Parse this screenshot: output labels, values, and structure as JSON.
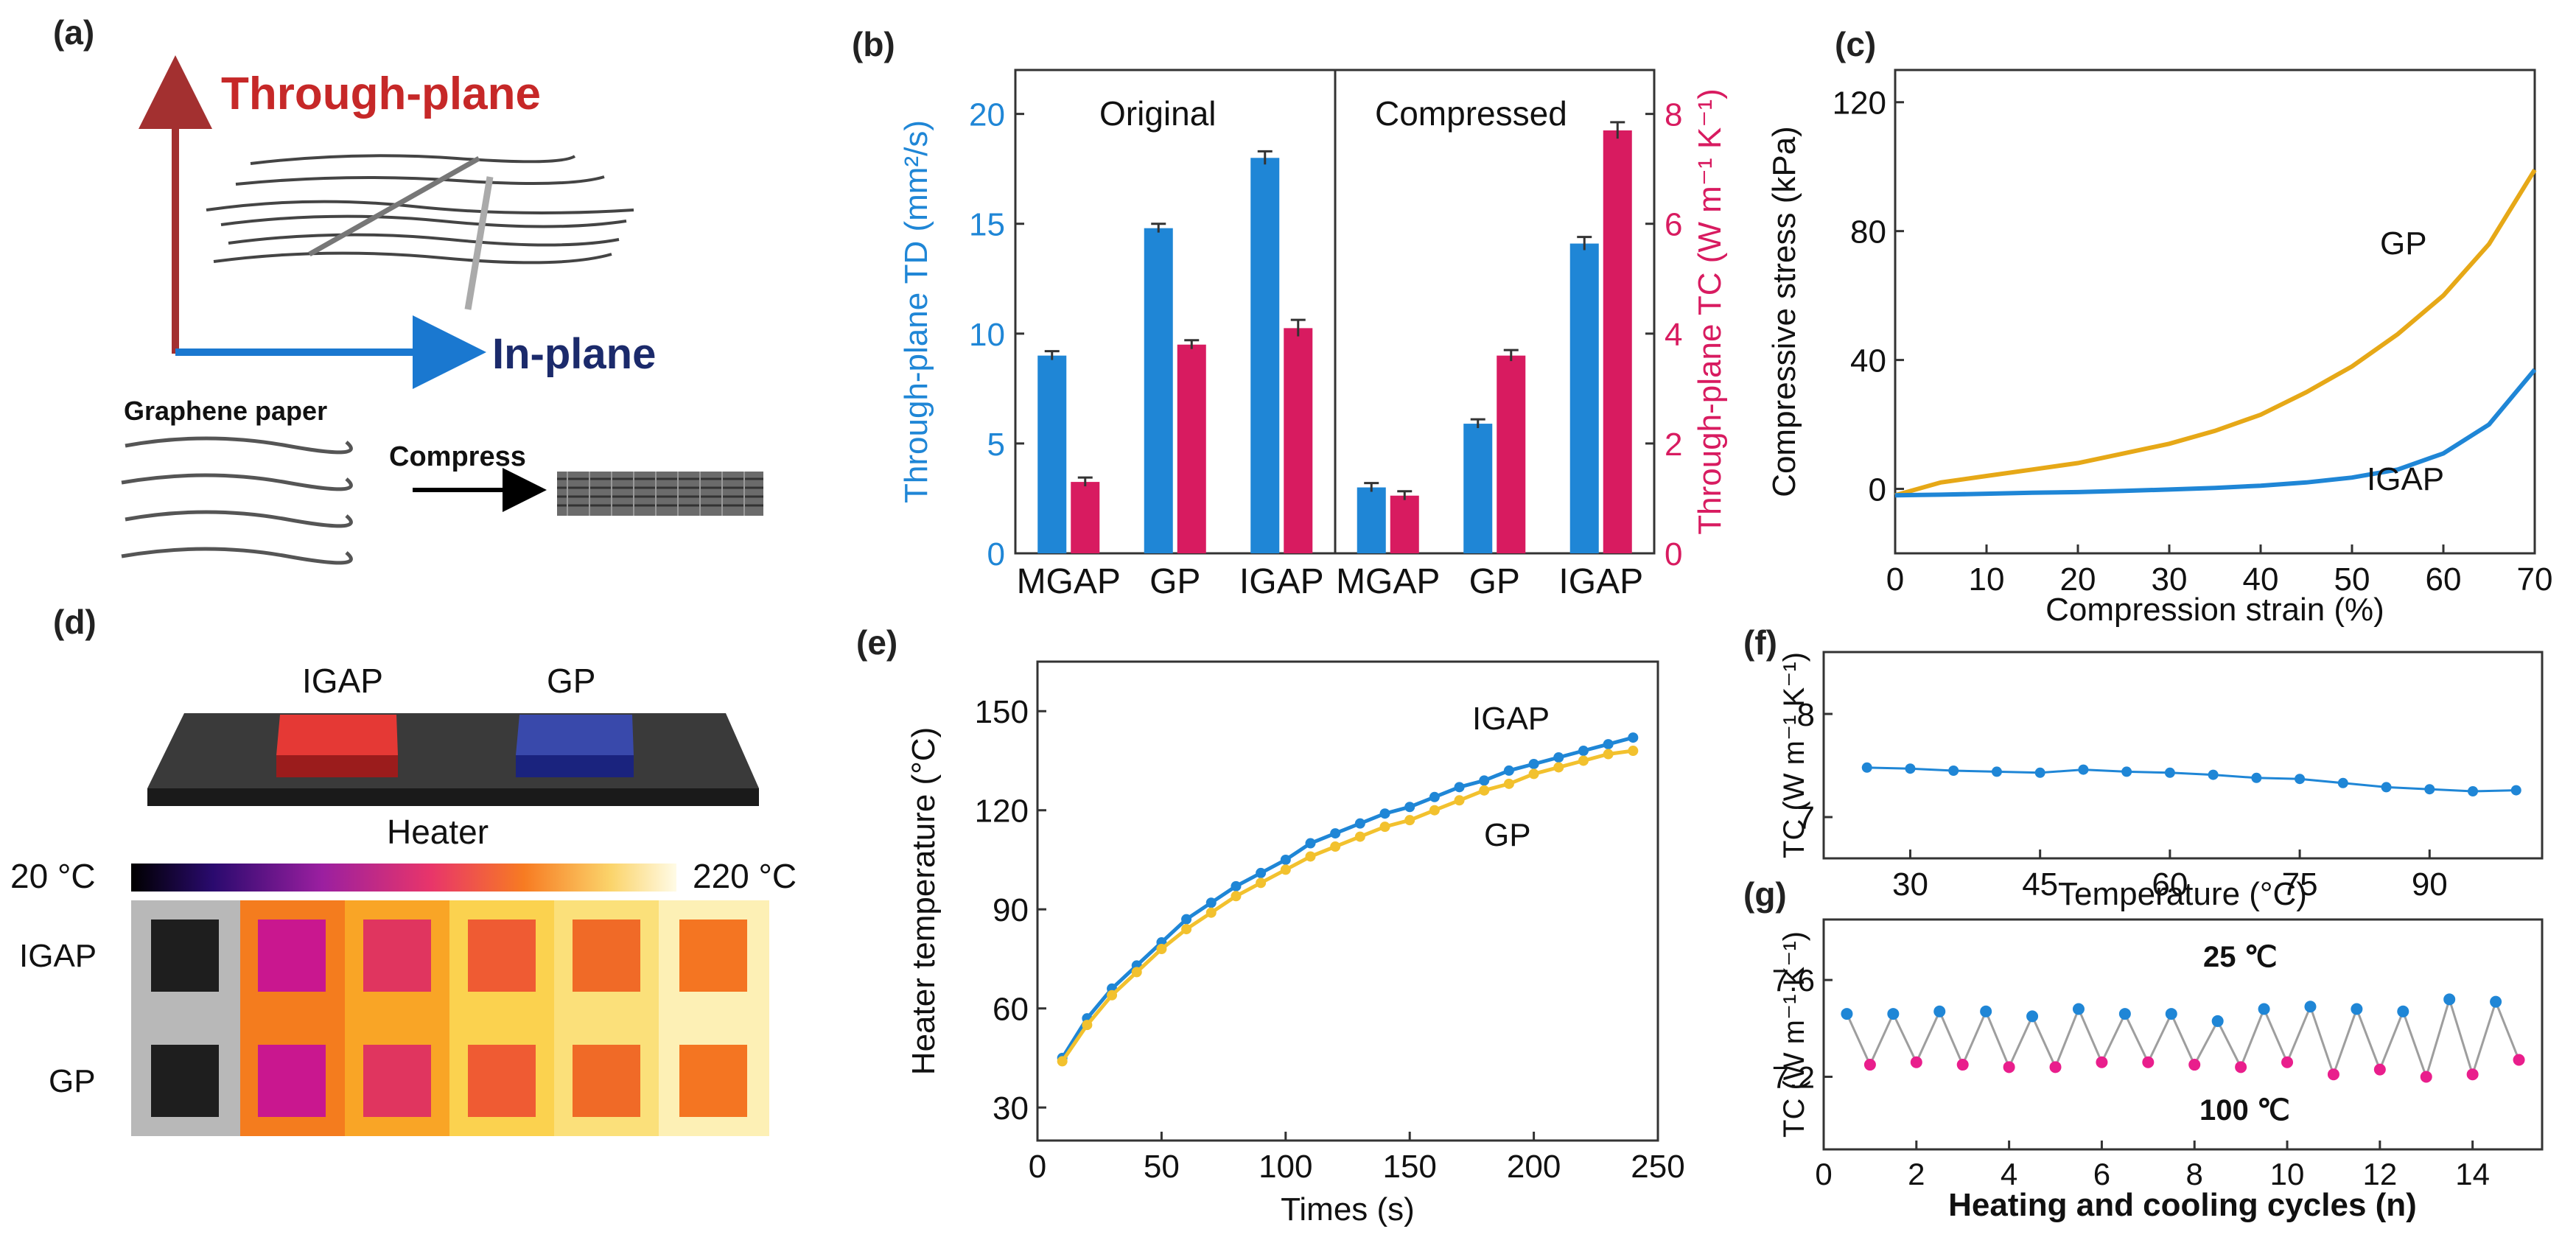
{
  "panels": {
    "a": {
      "label": "(a)",
      "through_plane": "Through-plane",
      "in_plane": "In-plane",
      "graphene_paper": "Graphene paper",
      "compress": "Compress"
    },
    "d": {
      "label": "(d)",
      "igap": "IGAP",
      "gp": "GP",
      "heater": "Heater",
      "scale_min": "20 °C",
      "scale_max": "220 °C",
      "row_igap": "IGAP",
      "row_gp": "GP"
    }
  },
  "colors": {
    "blue": "#1f86d6",
    "magenta": "#d81b60",
    "orange": "#e6a817",
    "gold": "#f2c12e",
    "gray_line": "#9e9e9e"
  },
  "chart_data": [
    {
      "id": "b",
      "panel_label": "(b)",
      "type": "bar",
      "categories": [
        "MGAP",
        "GP",
        "IGAP",
        "MGAP",
        "GP",
        "IGAP"
      ],
      "groups": [
        "Original",
        "Compressed"
      ],
      "series": [
        {
          "name": "Through-plane TD",
          "axis": "left",
          "values": [
            9.0,
            14.8,
            18.0,
            3.0,
            5.9,
            14.1
          ],
          "errors": [
            0.2,
            0.2,
            0.3,
            0.2,
            0.2,
            0.3
          ]
        },
        {
          "name": "Through-plane TC",
          "axis": "right",
          "values": [
            1.3,
            3.8,
            4.1,
            1.05,
            3.6,
            7.7
          ],
          "errors": [
            0.08,
            0.08,
            0.15,
            0.08,
            0.1,
            0.15
          ]
        }
      ],
      "ylabel_left": "Through-plane TD (mm²/s)",
      "ylabel_right": "Through-plane TC (W m⁻¹ K⁻¹)",
      "ylim_left": [
        0,
        22
      ],
      "ylim_right": [
        0,
        8.8
      ],
      "yticks_left": [
        "0",
        "5",
        "10",
        "15",
        "20"
      ],
      "yticks_right": [
        "0",
        "2",
        "4",
        "6",
        "8"
      ]
    },
    {
      "id": "c",
      "panel_label": "(c)",
      "type": "line",
      "xlabel": "Compression strain (%)",
      "ylabel": "Compressive stress (kPa)",
      "xlim": [
        0,
        70
      ],
      "ylim": [
        -20,
        130
      ],
      "xticks": [
        "0",
        "10",
        "20",
        "30",
        "40",
        "50",
        "60",
        "70"
      ],
      "yticks": [
        "0",
        "40",
        "80",
        "120"
      ],
      "series": [
        {
          "name": "GP",
          "x": [
            0,
            5,
            10,
            15,
            20,
            25,
            30,
            35,
            40,
            45,
            50,
            55,
            60,
            65,
            70
          ],
          "y": [
            -2,
            2,
            4,
            6,
            8,
            11,
            14,
            18,
            23,
            30,
            38,
            48,
            60,
            76,
            99
          ]
        },
        {
          "name": "IGAP",
          "x": [
            0,
            5,
            10,
            15,
            20,
            25,
            30,
            35,
            40,
            45,
            50,
            55,
            60,
            65,
            70
          ],
          "y": [
            -2,
            -1.8,
            -1.5,
            -1.2,
            -1,
            -0.6,
            -0.2,
            0.3,
            1,
            2,
            3.5,
            6,
            11,
            20,
            37
          ]
        }
      ]
    },
    {
      "id": "e",
      "panel_label": "(e)",
      "type": "line",
      "xlabel": "Times (s)",
      "ylabel": "Heater temperature (°C)",
      "xlim": [
        0,
        250
      ],
      "ylim": [
        20,
        165
      ],
      "xticks": [
        "0",
        "50",
        "100",
        "150",
        "200",
        "250"
      ],
      "yticks": [
        "30",
        "60",
        "90",
        "120",
        "150"
      ],
      "series": [
        {
          "name": "IGAP",
          "x": [
            10,
            20,
            30,
            40,
            50,
            60,
            70,
            80,
            90,
            100,
            110,
            120,
            130,
            140,
            150,
            160,
            170,
            180,
            190,
            200,
            210,
            220,
            230,
            240
          ],
          "y": [
            45,
            57,
            66,
            73,
            80,
            87,
            92,
            97,
            101,
            105,
            110,
            113,
            116,
            119,
            121,
            124,
            127,
            129,
            132,
            134,
            136,
            138,
            140,
            142
          ]
        },
        {
          "name": "GP",
          "x": [
            10,
            20,
            30,
            40,
            50,
            60,
            70,
            80,
            90,
            100,
            110,
            120,
            130,
            140,
            150,
            160,
            170,
            180,
            190,
            200,
            210,
            220,
            230,
            240
          ],
          "y": [
            44,
            55,
            64,
            71,
            78,
            84,
            89,
            94,
            98,
            102,
            106,
            109,
            112,
            115,
            117,
            120,
            123,
            126,
            128,
            131,
            133,
            135,
            137,
            138
          ]
        }
      ]
    },
    {
      "id": "f",
      "panel_label": "(f)",
      "type": "line",
      "xlabel": "Temperature (°C)",
      "ylabel": "TC (W m⁻¹ K⁻¹)",
      "xlim": [
        20,
        103
      ],
      "ylim": [
        6.6,
        8.6
      ],
      "xticks": [
        "30",
        "45",
        "60",
        "75",
        "90"
      ],
      "yticks": [
        "7",
        "8"
      ],
      "series": [
        {
          "name": "TC",
          "x": [
            25,
            30,
            35,
            40,
            45,
            50,
            55,
            60,
            65,
            70,
            75,
            80,
            85,
            90,
            95,
            100
          ],
          "y": [
            7.48,
            7.47,
            7.45,
            7.44,
            7.43,
            7.46,
            7.44,
            7.43,
            7.41,
            7.38,
            7.37,
            7.33,
            7.29,
            7.27,
            7.25,
            7.26
          ]
        }
      ]
    },
    {
      "id": "g",
      "panel_label": "(g)",
      "type": "line",
      "xlabel": "Heating and cooling cycles (n)",
      "ylabel": "TC (W m⁻¹ K⁻¹)",
      "xlim": [
        0,
        15.5
      ],
      "ylim": [
        6.9,
        7.85
      ],
      "xticks": [
        "0",
        "2",
        "4",
        "6",
        "8",
        "10",
        "12",
        "14"
      ],
      "yticks": [
        "7.2",
        "7.6"
      ],
      "series": [
        {
          "name": "25 ℃",
          "x": [
            0.5,
            1.5,
            2.5,
            3.5,
            4.5,
            5.5,
            6.5,
            7.5,
            8.5,
            9.5,
            10.5,
            11.5,
            12.5,
            13.5,
            14.5
          ],
          "y": [
            7.46,
            7.46,
            7.47,
            7.47,
            7.45,
            7.48,
            7.46,
            7.46,
            7.43,
            7.48,
            7.49,
            7.48,
            7.47,
            7.52,
            7.51
          ]
        },
        {
          "name": "100 ℃",
          "x": [
            1,
            2,
            3,
            4,
            5,
            6,
            7,
            8,
            9,
            10,
            11,
            12,
            13,
            14,
            15
          ],
          "y": [
            7.25,
            7.26,
            7.25,
            7.24,
            7.24,
            7.26,
            7.26,
            7.25,
            7.24,
            7.26,
            7.21,
            7.23,
            7.2,
            7.21,
            7.27
          ]
        }
      ]
    }
  ]
}
